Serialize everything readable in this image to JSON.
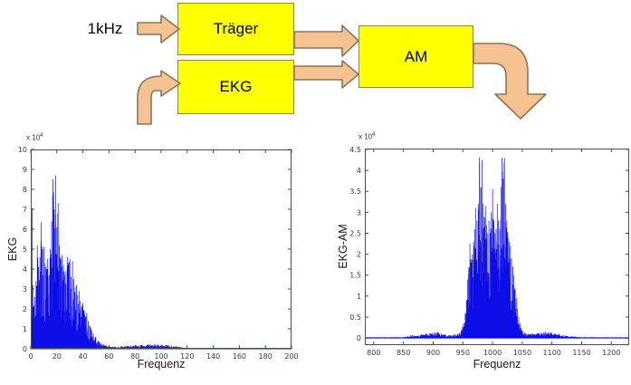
{
  "diagram": {
    "input_label": "1kHz",
    "blocks": {
      "traeger": "Träger",
      "ekg": "EKG",
      "am": "AM"
    },
    "colors": {
      "block_fill": "#ffff00",
      "block_border": "#8a8a3a",
      "arrow_fill": "#f5c391",
      "arrow_outline": "#8f7355",
      "text": "#000000"
    }
  },
  "chart_data": [
    {
      "name": "ekg-spectrum",
      "type": "line",
      "title": "",
      "xlabel": "Frequenz",
      "ylabel": "EKG",
      "exponent_label": {
        "prefix": "x 10",
        "power": "4"
      },
      "xlim": [
        0,
        200
      ],
      "ylim": [
        0,
        10
      ],
      "xticks": [
        0,
        20,
        40,
        60,
        80,
        100,
        120,
        140,
        160,
        180,
        200
      ],
      "yticks": [
        0,
        1,
        2,
        3,
        4,
        5,
        6,
        7,
        8,
        9,
        10
      ],
      "grid": false,
      "legend": null,
      "line_color": "#0d0de8",
      "axis_color": "#4d4d4d",
      "tick_label_color": "#3c3c3c",
      "noise_seed": 3,
      "sample_step": 0.3,
      "noise_floor": 0.28,
      "envelope_points": [
        [
          0,
          0.05
        ],
        [
          0.5,
          2.2
        ],
        [
          1,
          7.05
        ],
        [
          1.5,
          3.2
        ],
        [
          2,
          2.1
        ],
        [
          3,
          2.6
        ],
        [
          4,
          3.4
        ],
        [
          5,
          5.2
        ],
        [
          6,
          4.1
        ],
        [
          7,
          4.6
        ],
        [
          8,
          6.35
        ],
        [
          9,
          5.0
        ],
        [
          10,
          5.1
        ],
        [
          11,
          4.3
        ],
        [
          12,
          4.0
        ],
        [
          13,
          4.5
        ],
        [
          14,
          3.7
        ],
        [
          15,
          5.0
        ],
        [
          16,
          6.4
        ],
        [
          17,
          8.5
        ],
        [
          18,
          7.0
        ],
        [
          19,
          8.7
        ],
        [
          20,
          6.1
        ],
        [
          21,
          7.3
        ],
        [
          22,
          5.2
        ],
        [
          23,
          4.5
        ],
        [
          24,
          4.7
        ],
        [
          25,
          4.2
        ],
        [
          26,
          3.7
        ],
        [
          27,
          3.9
        ],
        [
          28,
          4.6
        ],
        [
          29,
          4.3
        ],
        [
          30,
          4.5
        ],
        [
          31,
          3.6
        ],
        [
          32,
          4.4
        ],
        [
          33,
          3.5
        ],
        [
          34,
          3.1
        ],
        [
          35,
          3.2
        ],
        [
          36,
          2.7
        ],
        [
          37,
          2.9
        ],
        [
          38,
          2.4
        ],
        [
          39,
          2.1
        ],
        [
          40,
          2.3
        ],
        [
          41,
          1.9
        ],
        [
          42,
          1.6
        ],
        [
          43,
          1.8
        ],
        [
          44,
          1.4
        ],
        [
          45,
          1.2
        ],
        [
          46,
          1.05
        ],
        [
          47,
          0.9
        ],
        [
          48,
          0.75
        ],
        [
          50,
          0.55
        ],
        [
          52,
          0.4
        ],
        [
          54,
          0.3
        ],
        [
          56,
          0.22
        ],
        [
          58,
          0.16
        ],
        [
          60,
          0.12
        ],
        [
          65,
          0.1
        ],
        [
          70,
          0.12
        ],
        [
          75,
          0.15
        ],
        [
          80,
          0.18
        ],
        [
          85,
          0.2
        ],
        [
          90,
          0.22
        ],
        [
          95,
          0.22
        ],
        [
          100,
          0.2
        ],
        [
          105,
          0.18
        ],
        [
          108,
          0.15
        ],
        [
          112,
          0.12
        ],
        [
          116,
          0.08
        ],
        [
          120,
          0.05
        ],
        [
          125,
          0.04
        ],
        [
          130,
          0.03
        ],
        [
          140,
          0.03
        ],
        [
          160,
          0.03
        ],
        [
          180,
          0.03
        ],
        [
          200,
          0.03
        ]
      ]
    },
    {
      "name": "ekg-am-spectrum",
      "type": "line",
      "title": "",
      "xlabel": "Frequenz",
      "ylabel": "EKG-AM",
      "exponent_label": {
        "prefix": "x 10",
        "power": "4"
      },
      "xlim": [
        785,
        1230
      ],
      "ylim": [
        -0.17,
        4.52
      ],
      "xticks": [
        800,
        850,
        900,
        950,
        1000,
        1050,
        1100,
        1150,
        1200
      ],
      "yticks": [
        0,
        0.5,
        1,
        1.5,
        2,
        2.5,
        3,
        3.5,
        4,
        4.5
      ],
      "grid": false,
      "legend": null,
      "line_color": "#0d0de8",
      "axis_color": "#4d4d4d",
      "tick_label_color": "#3c3c3c",
      "noise_seed": 7,
      "sample_step": 0.6,
      "noise_floor": 0.3,
      "envelope_points": [
        [
          785,
          0.02
        ],
        [
          850,
          0.02
        ],
        [
          858,
          0.05
        ],
        [
          865,
          0.07
        ],
        [
          872,
          0.05
        ],
        [
          880,
          0.08
        ],
        [
          888,
          0.1
        ],
        [
          895,
          0.11
        ],
        [
          902,
          0.13
        ],
        [
          908,
          0.14
        ],
        [
          914,
          0.1
        ],
        [
          920,
          0.08
        ],
        [
          928,
          0.07
        ],
        [
          935,
          0.08
        ],
        [
          942,
          0.1
        ],
        [
          948,
          0.2
        ],
        [
          951,
          0.35
        ],
        [
          954,
          0.6
        ],
        [
          956,
          0.9
        ],
        [
          958,
          1.4
        ],
        [
          960,
          1.65
        ],
        [
          962,
          2.25
        ],
        [
          964,
          1.8
        ],
        [
          966,
          2.0
        ],
        [
          968,
          2.3
        ],
        [
          970,
          2.6
        ],
        [
          972,
          3.1
        ],
        [
          974,
          2.8
        ],
        [
          976,
          3.2
        ],
        [
          978,
          4.3
        ],
        [
          980,
          3.6
        ],
        [
          982,
          4.25
        ],
        [
          984,
          3.2
        ],
        [
          986,
          2.9
        ],
        [
          988,
          3.15
        ],
        [
          990,
          2.7
        ],
        [
          992,
          2.5
        ],
        [
          994,
          2.8
        ],
        [
          996,
          2.5
        ],
        [
          998,
          3.0
        ],
        [
          1000,
          3.55
        ],
        [
          1002,
          2.8
        ],
        [
          1004,
          2.5
        ],
        [
          1006,
          2.6
        ],
        [
          1008,
          3.2
        ],
        [
          1010,
          2.8
        ],
        [
          1012,
          2.6
        ],
        [
          1014,
          3.6
        ],
        [
          1016,
          4.3
        ],
        [
          1018,
          3.8
        ],
        [
          1020,
          4.3
        ],
        [
          1022,
          3.2
        ],
        [
          1024,
          2.8
        ],
        [
          1026,
          2.4
        ],
        [
          1028,
          2.3
        ],
        [
          1030,
          2.2
        ],
        [
          1032,
          1.9
        ],
        [
          1034,
          1.7
        ],
        [
          1036,
          1.5
        ],
        [
          1038,
          1.2
        ],
        [
          1040,
          0.95
        ],
        [
          1042,
          0.7
        ],
        [
          1044,
          0.5
        ],
        [
          1046,
          0.35
        ],
        [
          1048,
          0.25
        ],
        [
          1050,
          0.18
        ],
        [
          1055,
          0.12
        ],
        [
          1060,
          0.1
        ],
        [
          1068,
          0.1
        ],
        [
          1075,
          0.11
        ],
        [
          1082,
          0.13
        ],
        [
          1090,
          0.15
        ],
        [
          1098,
          0.13
        ],
        [
          1105,
          0.1
        ],
        [
          1112,
          0.09
        ],
        [
          1120,
          0.07
        ],
        [
          1128,
          0.05
        ],
        [
          1135,
          0.04
        ],
        [
          1142,
          0.03
        ],
        [
          1150,
          0.02
        ],
        [
          1180,
          0.02
        ],
        [
          1220,
          0.02
        ]
      ]
    }
  ]
}
